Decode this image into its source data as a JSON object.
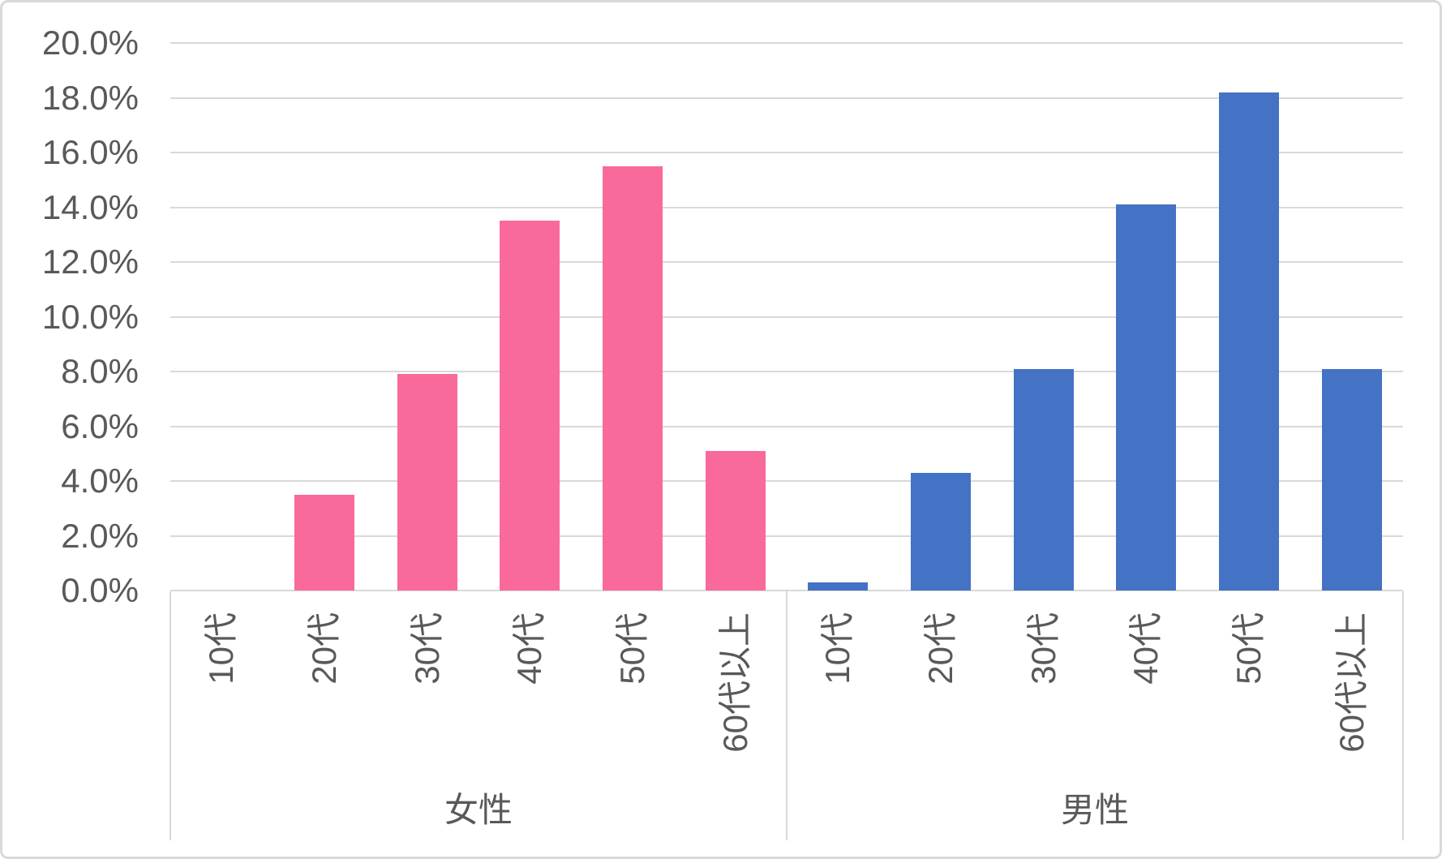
{
  "chart_data": {
    "type": "bar",
    "title": "",
    "axis_type": "multi-level-category",
    "unit": "%",
    "groups": [
      {
        "label": "女性",
        "series_color": "#F9699B",
        "categories": [
          "10代",
          "20代",
          "30代",
          "40代",
          "50代",
          "60代以上"
        ],
        "values": [
          0.0,
          3.5,
          7.9,
          13.5,
          15.5,
          5.1
        ]
      },
      {
        "label": "男性",
        "series_color": "#4472C4",
        "categories": [
          "10代",
          "20代",
          "30代",
          "40代",
          "50代",
          "60代以上"
        ],
        "values": [
          0.3,
          4.3,
          8.1,
          14.1,
          18.2,
          8.1
        ]
      }
    ],
    "ylim": [
      0,
      20
    ],
    "ytick_step": 2,
    "yticks": [
      "0.0%",
      "2.0%",
      "4.0%",
      "6.0%",
      "8.0%",
      "10.0%",
      "12.0%",
      "14.0%",
      "16.0%",
      "18.0%",
      "20.0%"
    ],
    "grid": true,
    "legend": "none",
    "text_color": "#595959",
    "gridline_color": "#D9D9D9",
    "border_color": "#D9D9D9",
    "background_color": "#FFFFFF"
  }
}
